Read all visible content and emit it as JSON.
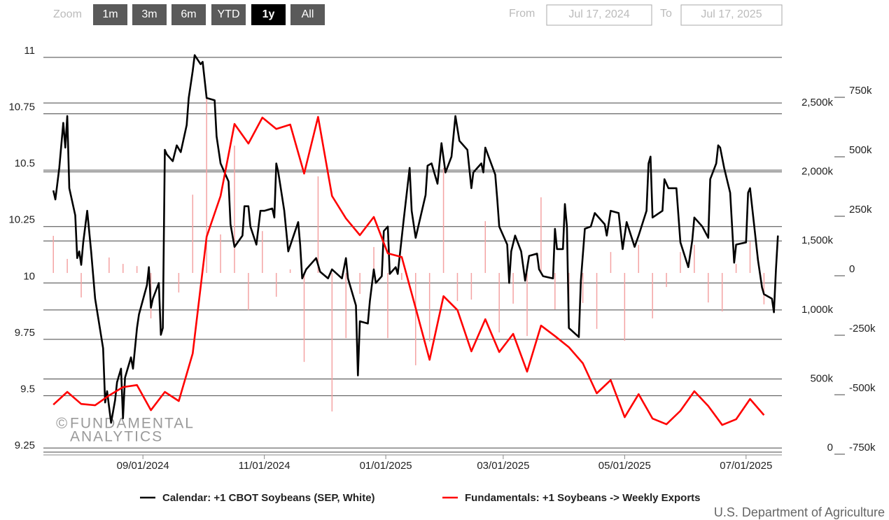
{
  "zoom": {
    "label": "Zoom",
    "buttons": [
      "1m",
      "3m",
      "6m",
      "YTD",
      "1y",
      "All"
    ],
    "selected": "1y"
  },
  "range": {
    "from_label": "From",
    "from": "Jul 17, 2024",
    "to_label": "To",
    "to": "Jul 17, 2025"
  },
  "watermark": [
    "©",
    "FUNDAMENTAL",
    "ANALYTICS"
  ],
  "source": "U.S. Department of Agriculture",
  "chart_data": {
    "type": "line",
    "xlim": [
      "2024-07-13",
      "2025-07-19"
    ],
    "xticks": [
      {
        "value": "2024-09-01",
        "label": "09/01/2024"
      },
      {
        "value": "2024-11-01",
        "label": "11/01/2024"
      },
      {
        "value": "2025-01-01",
        "label": "01/01/2025"
      },
      {
        "value": "2025-03-01",
        "label": "03/01/2025"
      },
      {
        "value": "2025-05-01",
        "label": "05/01/2025"
      },
      {
        "value": "2025-07-01",
        "label": "07/01/2025"
      }
    ],
    "ylim": [
      9.25,
      11
    ],
    "yticks": [
      9.25,
      9.5,
      9.75,
      10,
      10.25,
      10.5,
      10.75,
      11
    ],
    "y2lim": [
      -30000,
      2830000
    ],
    "y2ticks": [
      0,
      {
        "value": 500000,
        "label": "500k"
      },
      {
        "value": 1000000,
        "label": "1,000k"
      },
      {
        "value": 1500000,
        "label": "1,500k"
      },
      {
        "value": 2000000,
        "label": "2,000k"
      },
      {
        "value": 2500000,
        "label": "2,500k"
      }
    ],
    "y3lim": [
      -753000,
      906000
    ],
    "y3ticks": [
      {
        "value": -750000,
        "label": "-750k"
      },
      {
        "value": -500000,
        "label": "-500k"
      },
      {
        "value": -250000,
        "label": "-250k"
      },
      0,
      {
        "value": 250000,
        "label": "250k"
      },
      {
        "value": 500000,
        "label": "500k"
      },
      {
        "value": 750000,
        "label": "750k"
      }
    ],
    "grid": true,
    "legend": "bottom",
    "series": [
      {
        "name": "Calendar: +1 CBOT Soybeans (SEP, White)",
        "type": "line",
        "axis": "y",
        "color": "#000000",
        "x": [
          "2024-07-18",
          "2024-07-19",
          "2024-07-21",
          "2024-07-23",
          "2024-07-24",
          "2024-07-25",
          "2024-07-26",
          "2024-07-29",
          "2024-07-30",
          "2024-07-31",
          "2024-08-01",
          "2024-08-02",
          "2024-08-04",
          "2024-08-06",
          "2024-08-08",
          "2024-08-12",
          "2024-08-13",
          "2024-08-14",
          "2024-08-16",
          "2024-08-18",
          "2024-08-19",
          "2024-08-21",
          "2024-08-22",
          "2024-08-23",
          "2024-08-26",
          "2024-08-27",
          "2024-08-29",
          "2024-08-30",
          "2024-09-03",
          "2024-09-04",
          "2024-09-05",
          "2024-09-06",
          "2024-09-09",
          "2024-09-10",
          "2024-09-11",
          "2024-09-12",
          "2024-09-13",
          "2024-09-16",
          "2024-09-18",
          "2024-09-20",
          "2024-09-23",
          "2024-09-24",
          "2024-09-26",
          "2024-09-27",
          "2024-09-30",
          "2024-10-01",
          "2024-10-03",
          "2024-10-07",
          "2024-10-08",
          "2024-10-10",
          "2024-10-14",
          "2024-10-15",
          "2024-10-17",
          "2024-10-21",
          "2024-10-22",
          "2024-10-24",
          "2024-10-25",
          "2024-10-28",
          "2024-10-30",
          "2024-11-01",
          "2024-11-05",
          "2024-11-06",
          "2024-11-07",
          "2024-11-08",
          "2024-11-11",
          "2024-11-13",
          "2024-11-18",
          "2024-11-19",
          "2024-11-20",
          "2024-11-22",
          "2024-11-27",
          "2024-11-29",
          "2024-12-03",
          "2024-12-05",
          "2024-12-10",
          "2024-12-12",
          "2024-12-13",
          "2024-12-17",
          "2024-12-18",
          "2024-12-19",
          "2024-12-23",
          "2024-12-24",
          "2024-12-26",
          "2024-12-27",
          "2024-12-30",
          "2024-12-31",
          "2025-01-02",
          "2025-01-03",
          "2025-01-06",
          "2025-01-07",
          "2025-01-10",
          "2025-01-13",
          "2025-01-14",
          "2025-01-16",
          "2025-01-21",
          "2025-01-22",
          "2025-01-24",
          "2025-01-27",
          "2025-01-29",
          "2025-01-31",
          "2025-02-03",
          "2025-02-05",
          "2025-02-07",
          "2025-02-11",
          "2025-02-13",
          "2025-02-14",
          "2025-02-18",
          "2025-02-19",
          "2025-02-20",
          "2025-02-25",
          "2025-02-26",
          "2025-02-27",
          "2025-03-03",
          "2025-03-04",
          "2025-03-05",
          "2025-03-07",
          "2025-03-10",
          "2025-03-12",
          "2025-03-14",
          "2025-03-18",
          "2025-03-19",
          "2025-03-21",
          "2025-03-26",
          "2025-03-27",
          "2025-03-28",
          "2025-03-31",
          "2025-04-01",
          "2025-04-02",
          "2025-04-03",
          "2025-04-08",
          "2025-04-09",
          "2025-04-11",
          "2025-04-14",
          "2025-04-16",
          "2025-04-21",
          "2025-04-22",
          "2025-04-24",
          "2025-04-28",
          "2025-04-30",
          "2025-05-02",
          "2025-05-06",
          "2025-05-08",
          "2025-05-12",
          "2025-05-13",
          "2025-05-14",
          "2025-05-15",
          "2025-05-20",
          "2025-05-21",
          "2025-05-23",
          "2025-05-27",
          "2025-05-29",
          "2025-06-02",
          "2025-06-04",
          "2025-06-05",
          "2025-06-09",
          "2025-06-12",
          "2025-06-13",
          "2025-06-16",
          "2025-06-17",
          "2025-06-18",
          "2025-06-20",
          "2025-06-23",
          "2025-06-25",
          "2025-06-26",
          "2025-07-01",
          "2025-07-02",
          "2025-07-03",
          "2025-07-07",
          "2025-07-09",
          "2025-07-10",
          "2025-07-14",
          "2025-07-15",
          "2025-07-16",
          "2025-07-17"
        ],
        "values": [
          10.41,
          10.37,
          10.51,
          10.71,
          10.6,
          10.74,
          10.42,
          10.3,
          10.11,
          10.14,
          10.08,
          10.18,
          10.32,
          10.14,
          9.93,
          9.71,
          9.47,
          9.52,
          9.38,
          9.48,
          9.56,
          9.62,
          9.4,
          9.58,
          9.67,
          9.62,
          9.8,
          9.86,
          9.99,
          10.07,
          9.89,
          9.93,
          10.0,
          9.77,
          9.8,
          10.59,
          10.57,
          10.54,
          10.61,
          10.58,
          10.7,
          10.82,
          10.94,
          11.01,
          10.97,
          10.98,
          10.82,
          10.81,
          10.65,
          10.53,
          10.45,
          10.26,
          10.16,
          10.21,
          10.34,
          10.34,
          10.25,
          10.17,
          10.32,
          10.32,
          10.33,
          10.29,
          10.53,
          10.49,
          10.32,
          10.14,
          10.27,
          10.17,
          10.02,
          10.06,
          10.11,
          10.05,
          10.02,
          10.06,
          10.02,
          10.11,
          10.02,
          9.9,
          9.59,
          9.83,
          9.82,
          9.92,
          10.06,
          10.0,
          10.03,
          10.23,
          10.25,
          10.04,
          10.07,
          10.04,
          10.28,
          10.51,
          10.32,
          10.2,
          10.39,
          10.52,
          10.53,
          10.44,
          10.62,
          10.49,
          10.56,
          10.74,
          10.63,
          10.59,
          10.42,
          10.49,
          10.53,
          10.49,
          10.6,
          10.48,
          10.37,
          10.25,
          10.17,
          10.0,
          10.14,
          10.21,
          10.14,
          10.01,
          10.12,
          10.13,
          10.06,
          10.03,
          10.02,
          10.24,
          10.15,
          10.15,
          10.35,
          10.25,
          9.8,
          9.76,
          10.01,
          10.24,
          10.25,
          10.31,
          10.26,
          10.21,
          10.32,
          10.31,
          10.15,
          10.27,
          10.16,
          10.21,
          10.32,
          10.53,
          10.56,
          10.29,
          10.32,
          10.46,
          10.42,
          10.42,
          10.18,
          10.07,
          10.19,
          10.29,
          10.25,
          10.2,
          10.46,
          10.53,
          10.61,
          10.6,
          10.51,
          10.4,
          10.09,
          10.17,
          10.18,
          10.4,
          10.42,
          10.1,
          9.98,
          9.95,
          9.93,
          9.87,
          10.06,
          10.21
        ]
      },
      {
        "name": "Fundamentals: +1 Soybeans -> Weekly Exports",
        "type": "line",
        "axis": "y2",
        "color": "#ff0000",
        "x": [
          "2024-07-18",
          "2024-07-25",
          "2024-08-01",
          "2024-08-08",
          "2024-08-15",
          "2024-08-22",
          "2024-08-29",
          "2024-09-05",
          "2024-09-12",
          "2024-09-19",
          "2024-09-26",
          "2024-10-03",
          "2024-10-10",
          "2024-10-17",
          "2024-10-24",
          "2024-10-31",
          "2024-11-07",
          "2024-11-14",
          "2024-11-21",
          "2024-11-28",
          "2024-12-05",
          "2024-12-12",
          "2024-12-19",
          "2024-12-26",
          "2025-01-02",
          "2025-01-09",
          "2025-01-16",
          "2025-01-23",
          "2025-01-30",
          "2025-02-06",
          "2025-02-13",
          "2025-02-20",
          "2025-02-27",
          "2025-03-06",
          "2025-03-13",
          "2025-03-20",
          "2025-03-27",
          "2025-04-03",
          "2025-04-10",
          "2025-04-17",
          "2025-04-24",
          "2025-05-01",
          "2025-05-08",
          "2025-05-15",
          "2025-05-22",
          "2025-05-29",
          "2025-06-05",
          "2025-06-12",
          "2025-06-19",
          "2025-06-26",
          "2025-07-03",
          "2025-07-10"
        ],
        "values": [
          314000,
          406000,
          319000,
          309000,
          380000,
          441000,
          456000,
          274000,
          406000,
          340000,
          685000,
          1531000,
          1826000,
          2348000,
          2206000,
          2394000,
          2312000,
          2343000,
          1988000,
          2399000,
          1826000,
          1663000,
          1542000,
          1674000,
          1410000,
          1384000,
          1014000,
          639000,
          1100000,
          999000,
          700000,
          933000,
          695000,
          827000,
          553000,
          887000,
          811000,
          730000,
          614000,
          396000,
          492000,
          223000,
          390000,
          213000,
          172000,
          269000,
          411000,
          304000,
          167000,
          208000,
          355000,
          238000
        ]
      },
      {
        "type": "bar",
        "axis": "y3",
        "color": "#f4a3a3",
        "x": [
          "2024-07-18",
          "2024-07-25",
          "2024-08-01",
          "2024-08-08",
          "2024-08-15",
          "2024-08-22",
          "2024-08-29",
          "2024-09-05",
          "2024-09-12",
          "2024-09-19",
          "2024-09-26",
          "2024-10-03",
          "2024-10-10",
          "2024-10-17",
          "2024-10-24",
          "2024-10-31",
          "2024-11-07",
          "2024-11-14",
          "2024-11-21",
          "2024-11-28",
          "2024-12-05",
          "2024-12-12",
          "2024-12-19",
          "2024-12-26",
          "2025-01-02",
          "2025-01-09",
          "2025-01-16",
          "2025-01-23",
          "2025-01-30",
          "2025-02-06",
          "2025-02-13",
          "2025-02-20",
          "2025-02-27",
          "2025-03-06",
          "2025-03-13",
          "2025-03-20",
          "2025-03-27",
          "2025-04-03",
          "2025-04-10",
          "2025-04-17",
          "2025-04-24",
          "2025-05-01",
          "2025-05-08",
          "2025-05-15",
          "2025-05-22",
          "2025-05-29",
          "2025-06-05",
          "2025-06-12",
          "2025-06-19",
          "2025-06-26",
          "2025-07-03",
          "2025-07-10"
        ],
        "values": [
          156000,
          59000,
          -103000,
          null,
          65000,
          38000,
          29000,
          -191000,
          null,
          -82000,
          329000,
          735000,
          162000,
          535000,
          -156000,
          176000,
          -100000,
          15000,
          -374000,
          406000,
          -582000,
          -274000,
          -88000,
          109000,
          -274000,
          -29000,
          -388000,
          -288000,
          441000,
          -118000,
          -112000,
          218000,
          -250000,
          -129000,
          -265000,
          318000,
          -153000,
          -124000,
          -126000,
          -235000,
          88000,
          -285000,
          118000,
          -191000,
          -59000,
          88000,
          118000,
          -124000,
          -162000,
          38000,
          132000,
          -132000
        ]
      }
    ]
  }
}
